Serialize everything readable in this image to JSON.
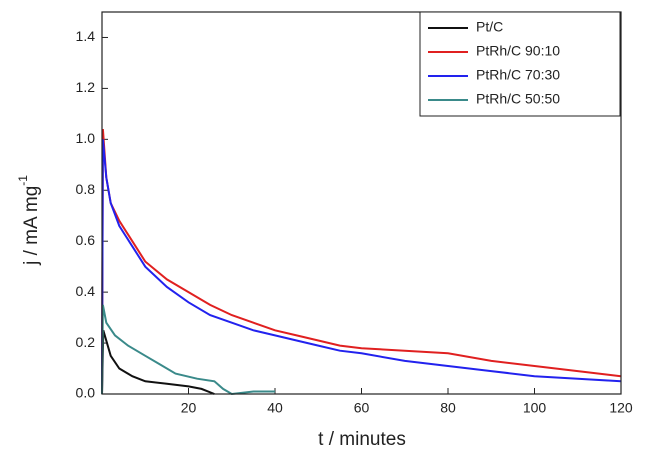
{
  "chart_data": {
    "type": "line",
    "x_label": "t / minutes",
    "y_label": "j / mA mg",
    "y_label_sup": "-1",
    "xlim": [
      0,
      120
    ],
    "ylim": [
      0,
      1.5
    ],
    "xticks": [
      20,
      40,
      60,
      80,
      100,
      120
    ],
    "yticks": [
      {
        "value": 0,
        "label": "0.0"
      },
      0.2,
      0.4,
      0.6,
      0.8,
      {
        "value": 1,
        "label": "1.0"
      },
      1.2,
      1.4
    ],
    "legend": "upper right",
    "series": [
      {
        "name": "Pt/C",
        "color": "#111111",
        "x": [
          0,
          0.3,
          2,
          4,
          7,
          10,
          15,
          20,
          23,
          26
        ],
        "values": [
          0,
          0.25,
          0.15,
          0.1,
          0.07,
          0.05,
          0.04,
          0.03,
          0.02,
          0
        ]
      },
      {
        "name": "PtRh/C 90:10",
        "color": "#e02020",
        "x": [
          0,
          0.2,
          1,
          2,
          4,
          7,
          10,
          15,
          20,
          25,
          30,
          35,
          40,
          45,
          50,
          55,
          60,
          70,
          80,
          90,
          100,
          110,
          120
        ],
        "values": [
          0,
          1.04,
          0.85,
          0.75,
          0.68,
          0.6,
          0.52,
          0.45,
          0.4,
          0.35,
          0.31,
          0.28,
          0.25,
          0.23,
          0.21,
          0.19,
          0.18,
          0.17,
          0.16,
          0.13,
          0.11,
          0.09,
          0.07
        ]
      },
      {
        "name": "PtRh/C 70:30",
        "color": "#2222ee",
        "x": [
          0,
          0.2,
          1,
          2,
          4,
          7,
          10,
          15,
          20,
          25,
          30,
          35,
          40,
          45,
          50,
          55,
          60,
          70,
          80,
          90,
          100,
          110,
          120
        ],
        "values": [
          0,
          1.0,
          0.85,
          0.75,
          0.66,
          0.58,
          0.5,
          0.42,
          0.36,
          0.31,
          0.28,
          0.25,
          0.23,
          0.21,
          0.19,
          0.17,
          0.16,
          0.13,
          0.11,
          0.09,
          0.07,
          0.06,
          0.05
        ]
      },
      {
        "name": "PtRh/C 50:50",
        "color": "#3a8a8a",
        "x": [
          0,
          0.2,
          1,
          3,
          6,
          10,
          13,
          17,
          22,
          26,
          28,
          30,
          35,
          40
        ],
        "values": [
          0,
          0.35,
          0.28,
          0.23,
          0.19,
          0.15,
          0.12,
          0.08,
          0.06,
          0.05,
          0.02,
          0,
          0.01,
          0.01
        ]
      }
    ]
  }
}
